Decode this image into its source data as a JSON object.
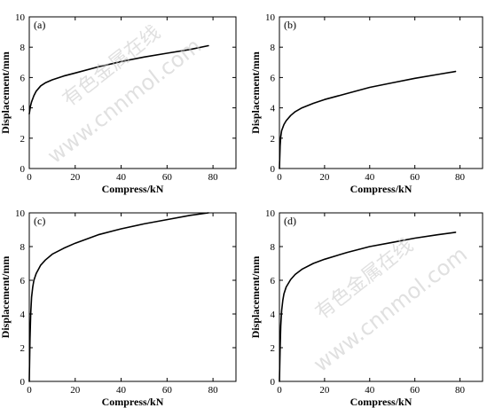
{
  "chart_data": [
    {
      "type": "line",
      "panel_label": "(a)",
      "xlabel": "Compress/kN",
      "ylabel": "Displacement/mm",
      "xlim": [
        0,
        90
      ],
      "ylim": [
        0,
        10
      ],
      "xticks": [
        0,
        20,
        40,
        60,
        80
      ],
      "yticks": [
        0,
        2,
        4,
        6,
        8,
        10
      ],
      "grid": false,
      "series": [
        {
          "x": [
            0,
            0.5,
            1,
            2,
            3,
            5,
            7,
            10,
            15,
            20,
            30,
            40,
            50,
            60,
            70,
            78
          ],
          "y": [
            3.6,
            4.1,
            4.4,
            4.8,
            5.1,
            5.45,
            5.65,
            5.85,
            6.1,
            6.3,
            6.7,
            7.05,
            7.35,
            7.6,
            7.85,
            8.1
          ]
        }
      ]
    },
    {
      "type": "line",
      "panel_label": "(b)",
      "xlabel": "Compress/kN",
      "ylabel": "Displacement/mm",
      "xlim": [
        0,
        90
      ],
      "ylim": [
        0,
        10
      ],
      "xticks": [
        0,
        20,
        40,
        60,
        80
      ],
      "yticks": [
        0,
        2,
        4,
        6,
        8,
        10
      ],
      "grid": false,
      "series": [
        {
          "x": [
            0,
            0.3,
            0.6,
            1,
            2,
            3,
            5,
            7,
            10,
            15,
            20,
            30,
            40,
            50,
            60,
            70,
            78
          ],
          "y": [
            0,
            1.5,
            2.1,
            2.5,
            2.9,
            3.15,
            3.5,
            3.75,
            4.0,
            4.3,
            4.55,
            4.95,
            5.35,
            5.65,
            5.95,
            6.2,
            6.4
          ]
        }
      ]
    },
    {
      "type": "line",
      "panel_label": "(c)",
      "xlabel": "Compress/kN",
      "ylabel": "Displacement/mm",
      "xlim": [
        0,
        90
      ],
      "ylim": [
        0,
        10
      ],
      "xticks": [
        0,
        20,
        40,
        60,
        80
      ],
      "yticks": [
        0,
        2,
        4,
        6,
        8,
        10
      ],
      "grid": false,
      "series": [
        {
          "x": [
            0,
            0.3,
            0.6,
            1,
            1.5,
            2,
            3,
            5,
            7,
            10,
            15,
            20,
            30,
            40,
            50,
            60,
            70,
            78
          ],
          "y": [
            0,
            2.5,
            4.0,
            5.0,
            5.6,
            6.0,
            6.4,
            6.9,
            7.2,
            7.55,
            7.9,
            8.2,
            8.7,
            9.05,
            9.35,
            9.6,
            9.85,
            10.0
          ]
        }
      ]
    },
    {
      "type": "line",
      "panel_label": "(d)",
      "xlabel": "Compress/kN",
      "ylabel": "Displacement/mm",
      "xlim": [
        0,
        90
      ],
      "ylim": [
        0,
        10
      ],
      "xticks": [
        0,
        20,
        40,
        60,
        80
      ],
      "yticks": [
        0,
        2,
        4,
        6,
        8,
        10
      ],
      "grid": false,
      "series": [
        {
          "x": [
            0,
            0.3,
            0.6,
            1,
            1.5,
            2,
            3,
            5,
            7,
            10,
            15,
            20,
            30,
            40,
            50,
            60,
            70,
            78
          ],
          "y": [
            0,
            2.0,
            3.3,
            4.2,
            4.8,
            5.2,
            5.6,
            6.05,
            6.35,
            6.65,
            7.0,
            7.25,
            7.65,
            8.0,
            8.25,
            8.5,
            8.7,
            8.85
          ]
        }
      ]
    }
  ],
  "watermarks": [
    "有色金属在线",
    "www.cnnmol.com"
  ]
}
